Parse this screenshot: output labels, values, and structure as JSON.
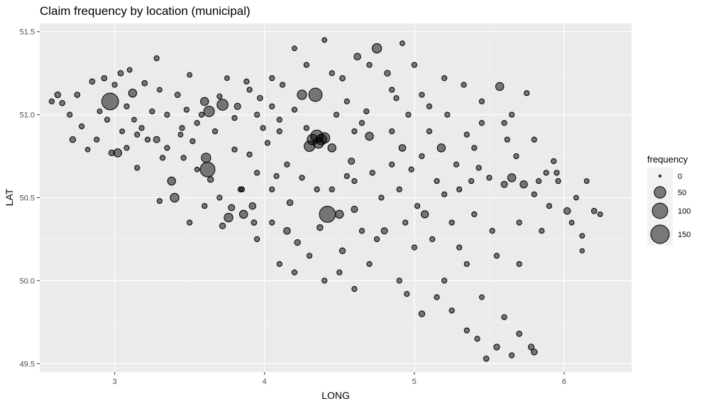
{
  "chart_data": {
    "type": "scatter",
    "title": "Claim frequency by location (municipal)",
    "xlabel": "LONG",
    "ylabel": "LAT",
    "xlim": [
      2.5,
      6.45
    ],
    "ylim": [
      49.45,
      51.55
    ],
    "x_ticks": [
      3,
      4,
      5,
      6
    ],
    "y_ticks": [
      49.5,
      50.0,
      50.5,
      51.0,
      51.5
    ],
    "x_tick_labels": [
      "3",
      "4",
      "5",
      "6"
    ],
    "y_tick_labels": [
      "49.5",
      "50.0",
      "50.5",
      "51.0",
      "51.5"
    ],
    "grid": true,
    "legend": {
      "title": "frequency",
      "placement": "right",
      "entries": [
        {
          "label": "0",
          "value": 0
        },
        {
          "label": "50",
          "value": 50
        },
        {
          "label": "100",
          "value": 100
        },
        {
          "label": "150",
          "value": 150
        }
      ]
    },
    "colors": {
      "panel": "#ebebeb",
      "grid": "#ffffff",
      "point_fill": "#000000",
      "point_stroke": "#000000",
      "point_alpha": 0.5
    },
    "points": [
      [
        2.58,
        51.08,
        5
      ],
      [
        2.62,
        51.12,
        8
      ],
      [
        2.65,
        51.07,
        6
      ],
      [
        2.7,
        51.0,
        5
      ],
      [
        2.72,
        50.85,
        8
      ],
      [
        2.75,
        51.12,
        6
      ],
      [
        2.78,
        50.93,
        5
      ],
      [
        2.82,
        50.79,
        4
      ],
      [
        2.85,
        51.2,
        6
      ],
      [
        2.88,
        50.85,
        5
      ],
      [
        2.9,
        51.02,
        4
      ],
      [
        2.93,
        51.22,
        6
      ],
      [
        2.95,
        50.97,
        5
      ],
      [
        2.97,
        51.08,
        120
      ],
      [
        2.98,
        50.77,
        8
      ],
      [
        3.0,
        51.18,
        5
      ],
      [
        3.02,
        50.77,
        20
      ],
      [
        3.04,
        51.25,
        6
      ],
      [
        3.05,
        50.9,
        4
      ],
      [
        3.08,
        51.05,
        5
      ],
      [
        3.1,
        51.27,
        4
      ],
      [
        3.12,
        51.13,
        20
      ],
      [
        3.13,
        50.97,
        4
      ],
      [
        3.15,
        50.68,
        5
      ],
      [
        3.18,
        50.92,
        5
      ],
      [
        3.2,
        51.19,
        6
      ],
      [
        3.22,
        50.85,
        5
      ],
      [
        3.25,
        51.02,
        5
      ],
      [
        3.28,
        51.34,
        5
      ],
      [
        3.28,
        50.85,
        10
      ],
      [
        3.3,
        51.15,
        4
      ],
      [
        3.32,
        50.74,
        5
      ],
      [
        3.35,
        51.0,
        5
      ],
      [
        3.38,
        50.6,
        20
      ],
      [
        3.4,
        50.5,
        25
      ],
      [
        3.42,
        51.12,
        6
      ],
      [
        3.44,
        50.88,
        4
      ],
      [
        3.46,
        50.74,
        5
      ],
      [
        3.48,
        51.03,
        5
      ],
      [
        3.5,
        51.24,
        4
      ],
      [
        3.52,
        50.84,
        5
      ],
      [
        3.55,
        50.67,
        4
      ],
      [
        3.58,
        51.0,
        5
      ],
      [
        3.6,
        51.08,
        20
      ],
      [
        3.61,
        50.74,
        30
      ],
      [
        3.62,
        50.67,
        90
      ],
      [
        3.63,
        51.02,
        40
      ],
      [
        3.64,
        50.61,
        8
      ],
      [
        3.67,
        50.9,
        5
      ],
      [
        3.7,
        51.11,
        5
      ],
      [
        3.72,
        51.06,
        45
      ],
      [
        3.72,
        50.33,
        8
      ],
      [
        3.76,
        50.38,
        25
      ],
      [
        3.78,
        50.44,
        10
      ],
      [
        3.8,
        50.98,
        5
      ],
      [
        3.8,
        50.79,
        5
      ],
      [
        3.82,
        51.05,
        10
      ],
      [
        3.84,
        50.55,
        5
      ],
      [
        3.86,
        50.4,
        20
      ],
      [
        3.88,
        51.2,
        5
      ],
      [
        3.9,
        50.76,
        5
      ],
      [
        3.92,
        50.45,
        12
      ],
      [
        3.93,
        50.35,
        6
      ],
      [
        3.95,
        51.0,
        5
      ],
      [
        3.97,
        51.1,
        6
      ],
      [
        3.99,
        50.92,
        5
      ],
      [
        4.02,
        50.83,
        5
      ],
      [
        4.05,
        51.22,
        5
      ],
      [
        4.08,
        50.63,
        5
      ],
      [
        4.1,
        50.9,
        5
      ],
      [
        4.12,
        51.18,
        5
      ],
      [
        4.15,
        50.3,
        12
      ],
      [
        4.17,
        50.47,
        8
      ],
      [
        4.2,
        51.03,
        5
      ],
      [
        4.22,
        50.23,
        8
      ],
      [
        4.25,
        51.12,
        30
      ],
      [
        4.28,
        50.92,
        5
      ],
      [
        4.3,
        50.81,
        40
      ],
      [
        4.32,
        50.85,
        40
      ],
      [
        4.34,
        51.12,
        70
      ],
      [
        4.35,
        50.87,
        60
      ],
      [
        4.36,
        50.83,
        40
      ],
      [
        4.38,
        50.85,
        40
      ],
      [
        4.4,
        50.86,
        40
      ],
      [
        4.37,
        50.32,
        8
      ],
      [
        4.42,
        50.4,
        110
      ],
      [
        4.45,
        50.8,
        20
      ],
      [
        4.48,
        51.0,
        5
      ],
      [
        4.5,
        50.4,
        20
      ],
      [
        4.52,
        50.18,
        8
      ],
      [
        4.52,
        51.22,
        6
      ],
      [
        4.55,
        50.63,
        5
      ],
      [
        4.58,
        50.72,
        10
      ],
      [
        4.6,
        50.43,
        10
      ],
      [
        4.62,
        51.35,
        12
      ],
      [
        4.65,
        50.95,
        5
      ],
      [
        4.68,
        51.02,
        5
      ],
      [
        4.7,
        50.87,
        20
      ],
      [
        4.72,
        50.65,
        5
      ],
      [
        4.75,
        51.4,
        30
      ],
      [
        4.78,
        50.5,
        5
      ],
      [
        4.8,
        50.3,
        10
      ],
      [
        4.82,
        51.25,
        8
      ],
      [
        4.85,
        50.9,
        5
      ],
      [
        4.88,
        51.1,
        5
      ],
      [
        4.9,
        50.55,
        5
      ],
      [
        4.92,
        50.8,
        12
      ],
      [
        4.94,
        50.35,
        5
      ],
      [
        4.96,
        51.0,
        5
      ],
      [
        4.98,
        50.67,
        5
      ],
      [
        5.0,
        51.3,
        5
      ],
      [
        5.02,
        50.45,
        5
      ],
      [
        5.05,
        50.75,
        5
      ],
      [
        5.07,
        50.4,
        15
      ],
      [
        5.1,
        51.05,
        5
      ],
      [
        5.12,
        50.25,
        5
      ],
      [
        5.15,
        50.6,
        5
      ],
      [
        5.18,
        50.8,
        20
      ],
      [
        5.2,
        50.52,
        5
      ],
      [
        5.22,
        51.0,
        5
      ],
      [
        5.25,
        50.35,
        5
      ],
      [
        5.28,
        50.7,
        5
      ],
      [
        5.3,
        50.55,
        5
      ],
      [
        5.33,
        51.18,
        5
      ],
      [
        5.35,
        50.88,
        5
      ],
      [
        5.38,
        50.6,
        5
      ],
      [
        5.4,
        50.4,
        5
      ],
      [
        5.43,
        50.68,
        5
      ],
      [
        5.45,
        50.95,
        5
      ],
      [
        5.48,
        49.53,
        6
      ],
      [
        5.5,
        50.62,
        5
      ],
      [
        5.52,
        50.3,
        5
      ],
      [
        5.55,
        49.6,
        8
      ],
      [
        5.57,
        51.17,
        20
      ],
      [
        5.6,
        50.58,
        10
      ],
      [
        5.62,
        50.85,
        5
      ],
      [
        5.65,
        50.62,
        20
      ],
      [
        5.68,
        50.75,
        5
      ],
      [
        5.7,
        50.35,
        5
      ],
      [
        5.73,
        50.58,
        15
      ],
      [
        5.75,
        51.13,
        5
      ],
      [
        5.78,
        49.6,
        8
      ],
      [
        5.8,
        50.52,
        5
      ],
      [
        5.83,
        50.6,
        5
      ],
      [
        5.85,
        50.3,
        5
      ],
      [
        5.88,
        50.65,
        5
      ],
      [
        5.9,
        50.45,
        5
      ],
      [
        5.93,
        50.72,
        5
      ],
      [
        5.96,
        50.6,
        5
      ],
      [
        6.02,
        50.42,
        12
      ],
      [
        6.05,
        50.35,
        4
      ],
      [
        6.08,
        50.5,
        4
      ],
      [
        6.12,
        50.27,
        4
      ],
      [
        6.15,
        50.6,
        4
      ],
      [
        6.2,
        50.42,
        6
      ],
      [
        6.24,
        50.4,
        4
      ],
      [
        6.12,
        50.18,
        3
      ],
      [
        4.1,
        50.1,
        5
      ],
      [
        4.3,
        50.15,
        5
      ],
      [
        4.5,
        50.05,
        5
      ],
      [
        4.7,
        50.1,
        5
      ],
      [
        4.9,
        50.0,
        5
      ],
      [
        5.05,
        49.8,
        8
      ],
      [
        5.15,
        49.9,
        5
      ],
      [
        5.25,
        49.82,
        5
      ],
      [
        5.35,
        49.7,
        5
      ],
      [
        5.42,
        49.65,
        5
      ],
      [
        5.6,
        49.78,
        5
      ],
      [
        5.7,
        49.68,
        6
      ],
      [
        5.8,
        49.57,
        8
      ],
      [
        5.65,
        49.55,
        5
      ],
      [
        4.95,
        49.92,
        5
      ],
      [
        5.2,
        50.0,
        5
      ],
      [
        5.45,
        49.9,
        4
      ],
      [
        4.6,
        50.9,
        5
      ],
      [
        4.55,
        51.08,
        5
      ],
      [
        4.45,
        51.25,
        5
      ],
      [
        4.4,
        51.45,
        4
      ],
      [
        4.92,
        51.43,
        4
      ],
      [
        4.28,
        51.3,
        5
      ],
      [
        4.05,
        51.05,
        5
      ],
      [
        3.9,
        51.15,
        5
      ],
      [
        3.75,
        51.22,
        4
      ],
      [
        3.55,
        50.95,
        5
      ],
      [
        3.45,
        50.92,
        5
      ],
      [
        3.35,
        50.8,
        5
      ],
      [
        3.15,
        50.88,
        5
      ],
      [
        3.08,
        50.8,
        5
      ],
      [
        4.15,
        50.7,
        5
      ],
      [
        4.25,
        50.62,
        5
      ],
      [
        4.05,
        50.55,
        5
      ],
      [
        3.95,
        50.65,
        5
      ],
      [
        4.45,
        50.55,
        5
      ],
      [
        4.65,
        50.3,
        5
      ],
      [
        4.75,
        50.25,
        5
      ],
      [
        5.0,
        50.2,
        5
      ],
      [
        5.3,
        50.2,
        5
      ],
      [
        5.55,
        50.15,
        5
      ],
      [
        5.7,
        50.1,
        5
      ],
      [
        5.35,
        50.1,
        5
      ],
      [
        4.85,
        50.7,
        5
      ],
      [
        5.1,
        50.9,
        5
      ],
      [
        5.4,
        50.8,
        5
      ],
      [
        5.6,
        50.95,
        5
      ],
      [
        5.8,
        50.85,
        5
      ],
      [
        5.95,
        50.65,
        5
      ],
      [
        4.6,
        50.6,
        5
      ],
      [
        4.35,
        50.55,
        5
      ],
      [
        3.85,
        50.55,
        5
      ],
      [
        3.7,
        50.5,
        5
      ],
      [
        3.5,
        50.35,
        5
      ],
      [
        3.3,
        50.48,
        5
      ],
      [
        3.6,
        50.45,
        5
      ],
      [
        4.2,
        51.4,
        4
      ],
      [
        4.7,
        51.3,
        5
      ],
      [
        4.85,
        51.15,
        5
      ],
      [
        5.05,
        51.12,
        5
      ],
      [
        5.2,
        51.22,
        5
      ],
      [
        5.45,
        51.08,
        5
      ],
      [
        5.65,
        51.0,
        5
      ],
      [
        4.1,
        50.97,
        5
      ],
      [
        4.05,
        50.35,
        5
      ],
      [
        3.95,
        50.25,
        5
      ],
      [
        4.2,
        50.05,
        5
      ],
      [
        4.4,
        50.0,
        5
      ],
      [
        4.6,
        49.95,
        5
      ]
    ]
  }
}
